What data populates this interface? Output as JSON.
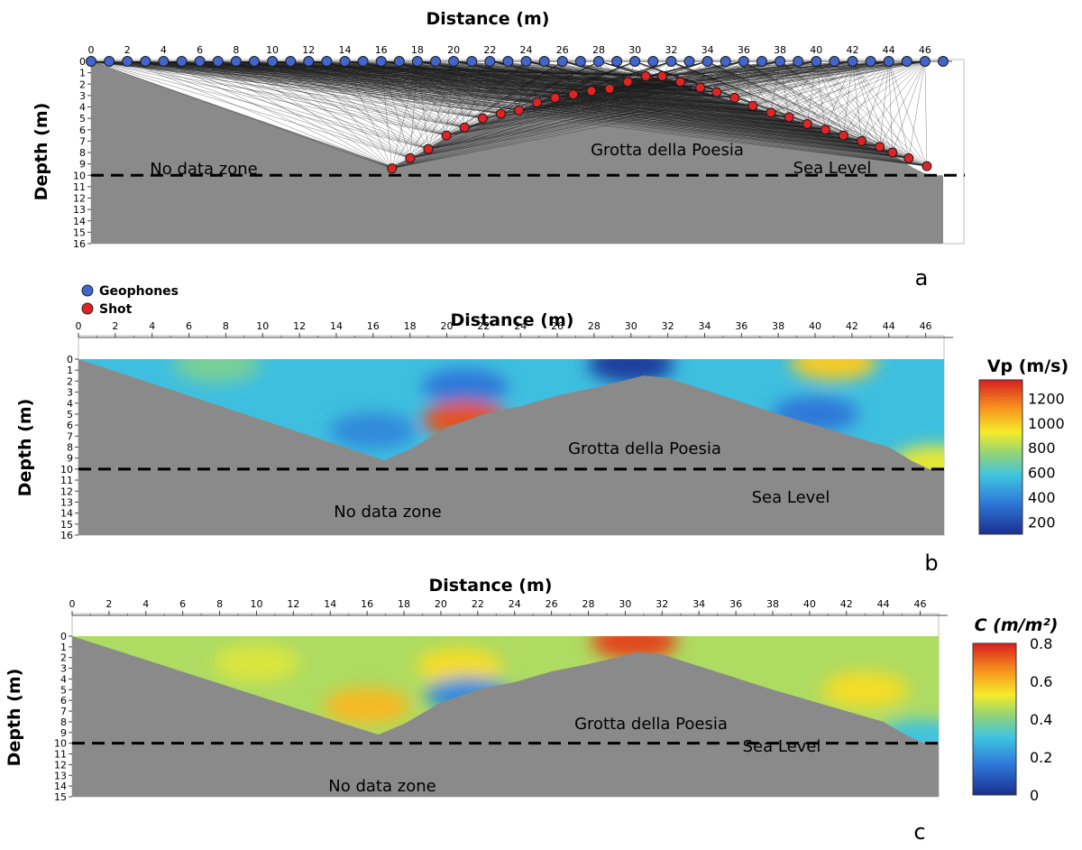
{
  "colors": {
    "background_zone": "#8a8a8a",
    "geophone": "#3f66c8",
    "shot": "#e02424",
    "ray": "#1a1a1a"
  },
  "legend": {
    "geophones": "Geophones",
    "shot": "Shot"
  },
  "chart_data": [
    {
      "panel": "a",
      "type": "scatter",
      "xlabel": "Distance (m)",
      "ylabel": "Depth (m)",
      "xlim": [
        0,
        47
      ],
      "ylim": [
        16,
        0
      ],
      "x_ticks": [
        0,
        2,
        4,
        6,
        8,
        10,
        12,
        14,
        16,
        18,
        20,
        22,
        24,
        26,
        28,
        30,
        32,
        34,
        36,
        38,
        40,
        42,
        44,
        46
      ],
      "y_ticks": [
        0,
        1,
        2,
        3,
        4,
        5,
        6,
        7,
        8,
        9,
        10,
        11,
        12,
        13,
        14,
        15,
        16
      ],
      "annotations": {
        "no_data": "No data zone",
        "cave": "Grotta della Poesia",
        "sea": "Sea Level"
      },
      "sea_level_depth": 10,
      "series": [
        {
          "name": "Geophones",
          "points": [
            [
              0,
              0
            ],
            [
              1,
              0
            ],
            [
              2,
              0
            ],
            [
              3,
              0
            ],
            [
              4,
              0
            ],
            [
              5,
              0
            ],
            [
              6,
              0
            ],
            [
              7,
              0
            ],
            [
              8,
              0
            ],
            [
              9,
              0
            ],
            [
              10,
              0
            ],
            [
              11,
              0
            ],
            [
              12,
              0
            ],
            [
              13,
              0
            ],
            [
              14,
              0
            ],
            [
              15,
              0
            ],
            [
              16,
              0
            ],
            [
              17,
              0
            ],
            [
              18,
              0
            ],
            [
              19,
              0
            ],
            [
              20,
              0
            ],
            [
              21,
              0
            ],
            [
              22,
              0
            ],
            [
              23,
              0
            ],
            [
              24,
              0
            ],
            [
              25,
              0
            ],
            [
              26,
              0
            ],
            [
              27,
              0
            ],
            [
              28,
              0
            ],
            [
              29,
              0
            ],
            [
              30,
              0
            ],
            [
              31,
              0
            ],
            [
              32,
              0
            ],
            [
              33,
              0
            ],
            [
              34,
              0
            ],
            [
              35,
              0
            ],
            [
              36,
              0
            ],
            [
              37,
              0
            ],
            [
              38,
              0
            ],
            [
              39,
              0
            ],
            [
              40,
              0
            ],
            [
              41,
              0
            ],
            [
              42,
              0
            ],
            [
              43,
              0
            ],
            [
              44,
              0
            ],
            [
              45,
              0
            ],
            [
              46,
              0
            ],
            [
              47,
              0
            ]
          ]
        },
        {
          "name": "Shot",
          "points": [
            [
              16.6,
              9.4
            ],
            [
              17.6,
              8.5
            ],
            [
              18.6,
              7.7
            ],
            [
              19.6,
              6.5
            ],
            [
              20.6,
              5.8
            ],
            [
              21.6,
              5.0
            ],
            [
              22.6,
              4.6
            ],
            [
              23.6,
              4.3
            ],
            [
              24.6,
              3.6
            ],
            [
              25.6,
              3.2
            ],
            [
              26.6,
              2.9
            ],
            [
              27.6,
              2.6
            ],
            [
              28.6,
              2.4
            ],
            [
              29.6,
              1.8
            ],
            [
              30.6,
              1.3
            ],
            [
              31.5,
              1.3
            ],
            [
              32.5,
              1.8
            ],
            [
              33.6,
              2.3
            ],
            [
              34.5,
              2.7
            ],
            [
              35.5,
              3.2
            ],
            [
              36.5,
              3.9
            ],
            [
              37.5,
              4.5
            ],
            [
              38.5,
              4.9
            ],
            [
              39.5,
              5.5
            ],
            [
              40.5,
              6.0
            ],
            [
              41.5,
              6.5
            ],
            [
              42.5,
              7.0
            ],
            [
              43.5,
              7.5
            ],
            [
              44.2,
              8.0
            ],
            [
              45.1,
              8.5
            ],
            [
              46.1,
              9.2
            ]
          ]
        }
      ]
    },
    {
      "panel": "b",
      "type": "heatmap",
      "xlabel": "Distance (m)",
      "ylabel": "Depth (m)",
      "xlim": [
        0,
        47
      ],
      "ylim": [
        16,
        0
      ],
      "x_ticks": [
        0,
        2,
        4,
        6,
        8,
        10,
        12,
        14,
        16,
        18,
        20,
        22,
        24,
        26,
        28,
        30,
        32,
        34,
        36,
        38,
        40,
        42,
        44,
        46
      ],
      "y_ticks": [
        0,
        1,
        2,
        3,
        4,
        5,
        6,
        7,
        8,
        9,
        10,
        11,
        12,
        13,
        14,
        15,
        16
      ],
      "annotations": {
        "no_data": "No data zone",
        "cave": "Grotta della Poesia",
        "sea": "Sea Level"
      },
      "sea_level_depth": 10,
      "colorbar": {
        "label": "Vp (m/s)",
        "min": 100,
        "max": 1350,
        "ticks": [
          200,
          400,
          600,
          800,
          1000,
          1200
        ]
      },
      "highlights": [
        {
          "x": 7.5,
          "depth": 0.5,
          "value": 700
        },
        {
          "x": 21,
          "depth": 2.5,
          "value": 350
        },
        {
          "x": 16,
          "depth": 6.5,
          "value": 400
        },
        {
          "x": 21,
          "depth": 5.5,
          "value": 1250
        },
        {
          "x": 30,
          "depth": 0.5,
          "value": 150
        },
        {
          "x": 41,
          "depth": 0.3,
          "value": 1000
        },
        {
          "x": 40,
          "depth": 5,
          "value": 350
        },
        {
          "x": 46.5,
          "depth": 9.5,
          "value": 900
        }
      ]
    },
    {
      "panel": "c",
      "type": "heatmap",
      "xlabel": "Distance (m)",
      "ylabel": "Depth (m)",
      "xlim": [
        0,
        47
      ],
      "ylim": [
        15,
        0
      ],
      "x_ticks": [
        0,
        2,
        4,
        6,
        8,
        10,
        12,
        14,
        16,
        18,
        20,
        22,
        24,
        26,
        28,
        30,
        32,
        34,
        36,
        38,
        40,
        42,
        44,
        46
      ],
      "y_ticks": [
        0,
        1,
        2,
        3,
        4,
        5,
        6,
        7,
        8,
        9,
        10,
        11,
        12,
        13,
        14,
        15
      ],
      "annotations": {
        "no_data": "No data zone",
        "cave": "Grotta della Poesia",
        "sea": "Sea Level"
      },
      "sea_level_depth": 10,
      "colorbar": {
        "label": "C (m/m²)",
        "min": 0,
        "max": 0.8,
        "ticks": [
          0,
          0.2,
          0.4,
          0.6,
          0.8
        ]
      },
      "highlights": [
        {
          "x": 10,
          "depth": 2.5,
          "value": 0.5
        },
        {
          "x": 21,
          "depth": 2.8,
          "value": 0.55
        },
        {
          "x": 16,
          "depth": 6.5,
          "value": 0.6
        },
        {
          "x": 21.5,
          "depth": 5.5,
          "value": 0.2
        },
        {
          "x": 30.5,
          "depth": 0.5,
          "value": 0.75
        },
        {
          "x": 43,
          "depth": 5,
          "value": 0.55
        },
        {
          "x": 46,
          "depth": 9.5,
          "value": 0.3
        }
      ]
    }
  ],
  "ridge_profile": [
    [
      16.6,
      9.2
    ],
    [
      18,
      8.2
    ],
    [
      20,
      6.2
    ],
    [
      22,
      5.0
    ],
    [
      24,
      4.3
    ],
    [
      26,
      3.3
    ],
    [
      28,
      2.6
    ],
    [
      29.5,
      2.0
    ],
    [
      30.7,
      1.5
    ],
    [
      32,
      1.7
    ],
    [
      34,
      2.8
    ],
    [
      36,
      3.9
    ],
    [
      38,
      5.0
    ],
    [
      40,
      6.0
    ],
    [
      42,
      7.0
    ],
    [
      44,
      8.0
    ],
    [
      45.3,
      9.3
    ],
    [
      46.2,
      10
    ]
  ],
  "panel_labels": [
    "a",
    "b",
    "c"
  ]
}
